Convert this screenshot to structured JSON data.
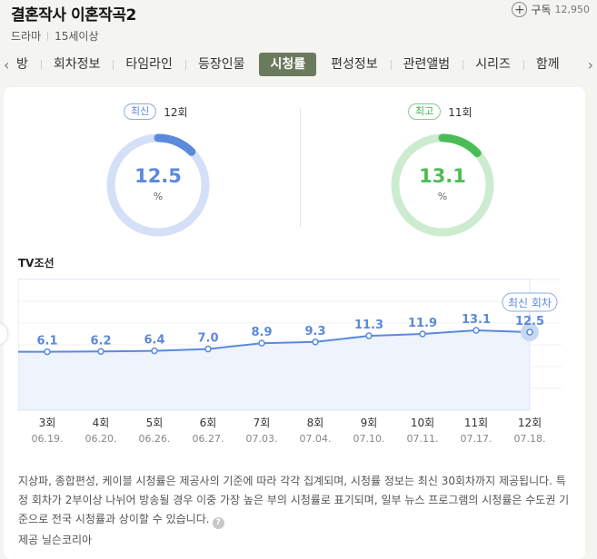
{
  "header": {
    "title": "결혼작사 이혼작곡2",
    "subscribe_label": "구독",
    "subscribe_count": "12,950",
    "genre": "드라마",
    "rating": "15세이상"
  },
  "tabs": [
    {
      "label": "방"
    },
    {
      "label": "회차정보"
    },
    {
      "label": "타임라인"
    },
    {
      "label": "등장인물"
    },
    {
      "label": "시청률",
      "active": true
    },
    {
      "label": "편성정보"
    },
    {
      "label": "관련앨범"
    },
    {
      "label": "시리즈"
    },
    {
      "label": "함께"
    }
  ],
  "summary": {
    "latest": {
      "badge": "최신",
      "episode": "12회",
      "value": "12.5",
      "unit": "%",
      "fraction": 0.125,
      "color": "#5b89dc",
      "track_color": "#d3e0f7"
    },
    "highest": {
      "badge": "최고",
      "episode": "11회",
      "value": "13.1",
      "unit": "%",
      "fraction": 0.131,
      "color": "#4cbd56",
      "track_color": "#cdeccf"
    }
  },
  "chart_label": "TV조선",
  "chart_data": {
    "type": "line",
    "categories": [
      "3회",
      "4회",
      "5회",
      "6회",
      "7회",
      "8회",
      "9회",
      "10회",
      "11회",
      "12회"
    ],
    "dates": [
      "06.19.",
      "06.20.",
      "06.26.",
      "06.27.",
      "07.03.",
      "07.04.",
      "07.10.",
      "07.11.",
      "07.17.",
      "07.18."
    ],
    "values": [
      6.1,
      6.2,
      6.4,
      7.0,
      8.9,
      9.3,
      11.3,
      11.9,
      13.1,
      12.5
    ],
    "ylim": [
      -13,
      30
    ],
    "grid": true,
    "callout": "최신 회차",
    "line_color": "#5b89dc",
    "area_color": "#eef3fc"
  },
  "notice": {
    "text": "지상파, 종합편성, 케이블 시청률은 제공사의 기준에 따라 각각 집계되며, 시청률 정보는 최신 30회차까지 제공됩니다. 특정 회차가 2부이상 나뉘어 방송될 경우 이중 가장 높은 부의 시청률로 표기되며, 일부 뉴스 프로그램의 시청률은 수도권 기준으로 전국 시청률과 상이할 수 있습니다.",
    "help": "?",
    "provider": "제공 닐슨코리아"
  }
}
